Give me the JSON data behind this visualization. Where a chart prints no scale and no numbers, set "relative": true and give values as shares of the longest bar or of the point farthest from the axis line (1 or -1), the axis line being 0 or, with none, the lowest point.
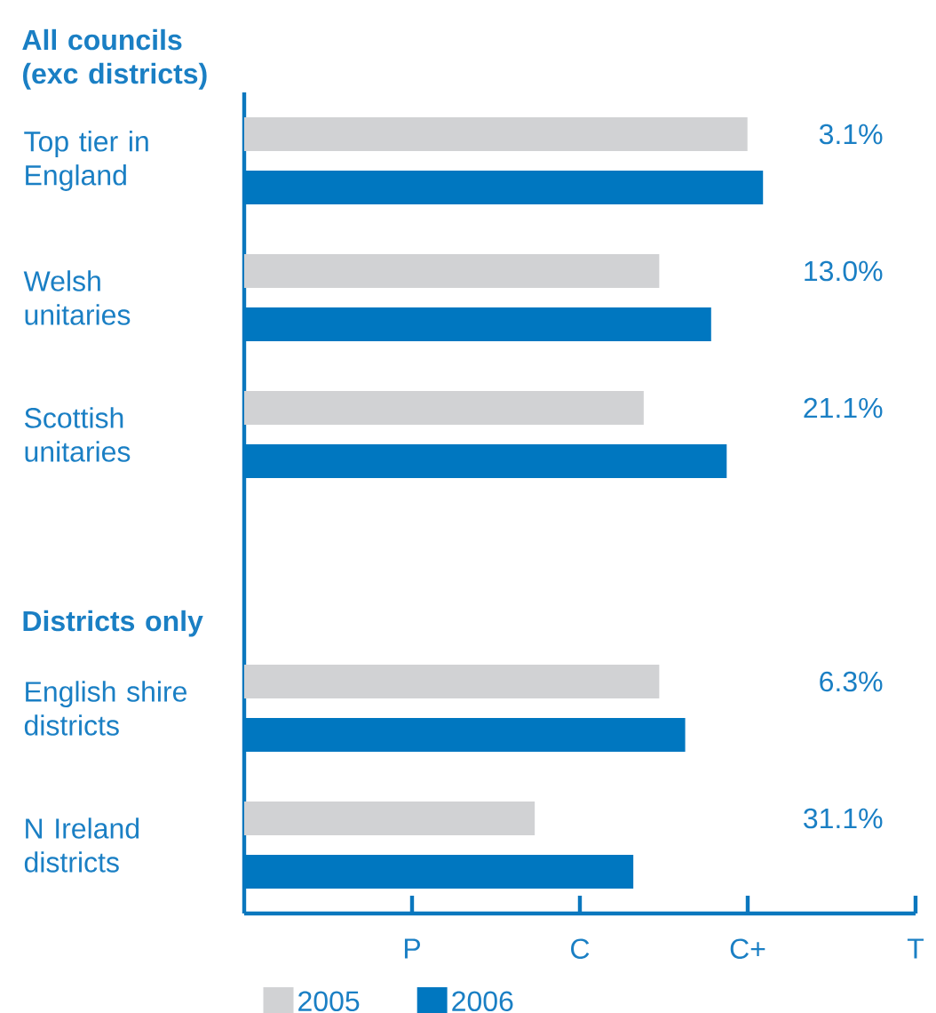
{
  "chart_data": {
    "type": "bar",
    "orientation": "horizontal",
    "relative": true,
    "categories": [
      "Top tier in England",
      "Welsh unitaries",
      "Scottish unitaries",
      null,
      "English shire districts",
      "N Ireland districts"
    ],
    "series": [
      {
        "name": "2005",
        "color": "#d1d2d4",
        "values": [
          0.97,
          0.8,
          0.77,
          null,
          0.8,
          0.56
        ]
      },
      {
        "name": "2006",
        "color": "#0077c0",
        "values": [
          1,
          0.9,
          0.93,
          null,
          0.85,
          0.75
        ]
      }
    ],
    "legend": "bottom",
    "annotations": [
      "All councils (exc districts)",
      "Districts only",
      "3.1%",
      "13.0%",
      "21.1%",
      "6.3%",
      "31.1%",
      "P",
      "C",
      "C+",
      "T"
    ]
  }
}
